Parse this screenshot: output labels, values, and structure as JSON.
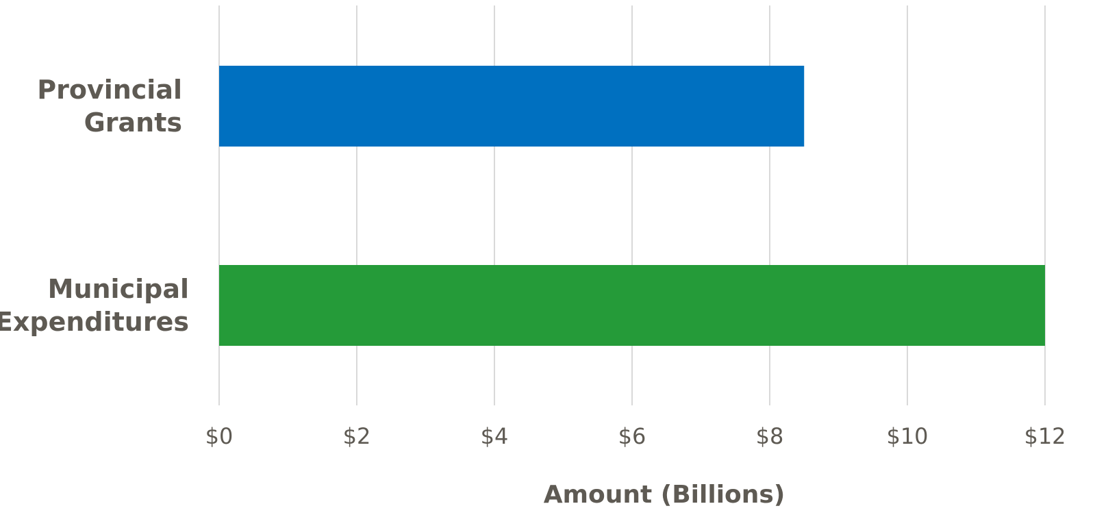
{
  "chart_data": {
    "type": "bar",
    "orientation": "horizontal",
    "categories": [
      [
        "Provincial",
        "Grants"
      ],
      [
        "Municipal",
        "Expenditures"
      ]
    ],
    "values": [
      8.5,
      12.0
    ],
    "colors": [
      "#0070c0",
      "#259b39"
    ],
    "xlabel": "Amount (Billions)",
    "ylabel": "",
    "title": "",
    "xlim": [
      0,
      12
    ],
    "xticks": [
      0,
      2,
      4,
      6,
      8,
      10,
      12
    ],
    "xtick_labels": [
      "$0",
      "$2",
      "$4",
      "$6",
      "$8",
      "$10",
      "$12"
    ],
    "grid": true,
    "legend": "none"
  }
}
